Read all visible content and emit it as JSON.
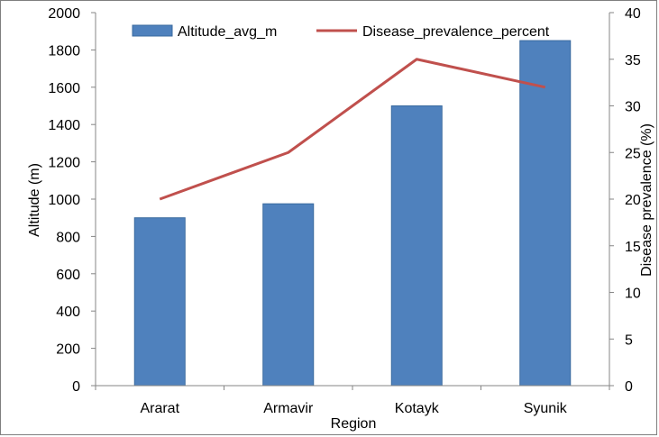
{
  "chart_data": {
    "type": "bar+line",
    "categories": [
      "Ararat",
      "Armavir",
      "Kotayk",
      "Syunik"
    ],
    "series": [
      {
        "name": "Altitude_avg_m",
        "type": "bar",
        "axis": "left",
        "color": "#4f81bd",
        "values": [
          900,
          975,
          1500,
          1850
        ]
      },
      {
        "name": "Disease_prevalence_percent",
        "type": "line",
        "axis": "right",
        "color": "#c0504d",
        "values": [
          20,
          25,
          35,
          32
        ]
      }
    ],
    "xlabel": "Region",
    "ylabel": "Altitude (m)",
    "y2label": "Disease prevalence (%)",
    "ylim": [
      0,
      2000
    ],
    "y2lim": [
      0,
      40
    ],
    "yticks": [
      "0",
      "200",
      "400",
      "600",
      "800",
      "1000",
      "1200",
      "1400",
      "1600",
      "1800",
      "2000"
    ],
    "y2ticks": [
      "0",
      "5",
      "10",
      "15",
      "20",
      "25",
      "30",
      "35",
      "40"
    ],
    "grid": false,
    "legend_position": "top"
  }
}
